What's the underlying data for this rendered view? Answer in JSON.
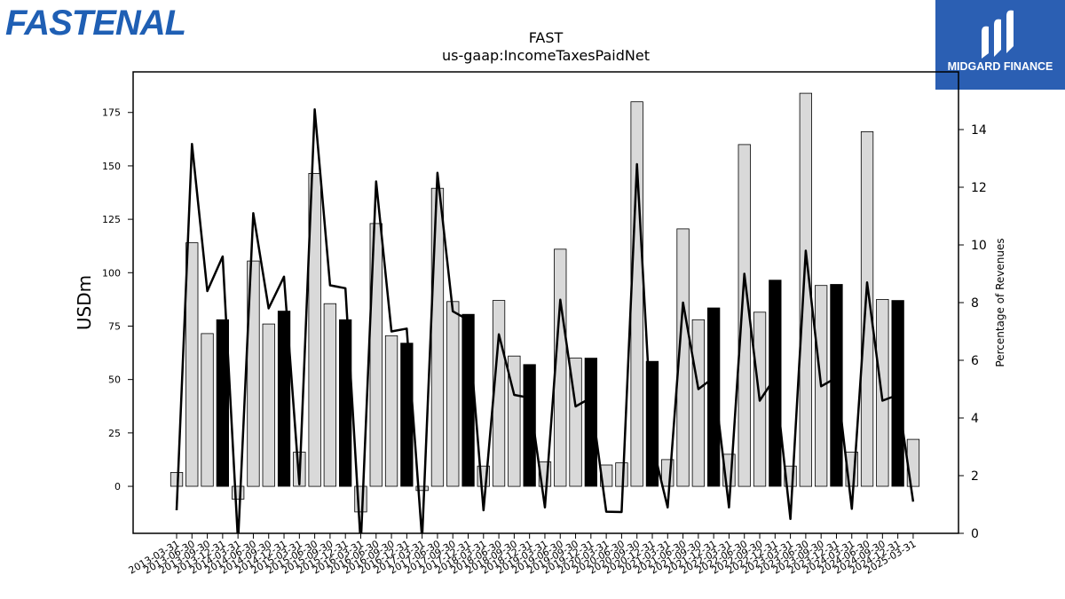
{
  "logos": {
    "left": "FASTENAL",
    "right": "MIDGARD FINANCE"
  },
  "chart_data": {
    "type": "bar",
    "title": "FAST",
    "subtitle": "us-gaap:IncomeTaxesPaidNet",
    "ylabel": "USDm",
    "y2label": "Percentage of Revenues",
    "ylim": [
      -22,
      194
    ],
    "y2lim": [
      0,
      16
    ],
    "yticks": [
      0,
      25,
      50,
      75,
      100,
      125,
      150,
      175
    ],
    "y2ticks": [
      0,
      2,
      4,
      6,
      8,
      10,
      12,
      14
    ],
    "categories": [
      "2013-03-31",
      "2013-06-30",
      "2013-09-30",
      "2013-12-31",
      "2014-03-31",
      "2014-06-30",
      "2014-09-30",
      "2014-12-31",
      "2015-03-31",
      "2015-06-30",
      "2015-09-30",
      "2015-12-31",
      "2016-03-31",
      "2016-06-30",
      "2016-09-30",
      "2016-12-31",
      "2017-03-31",
      "2017-06-30",
      "2017-09-30",
      "2017-12-31",
      "2018-03-31",
      "2018-06-30",
      "2018-09-30",
      "2018-12-31",
      "2019-03-31",
      "2019-06-30",
      "2019-09-30",
      "2019-12-31",
      "2020-03-31",
      "2020-06-30",
      "2020-09-30",
      "2020-12-31",
      "2021-03-31",
      "2021-06-30",
      "2021-09-30",
      "2021-12-31",
      "2022-03-31",
      "2022-06-30",
      "2022-09-30",
      "2022-12-31",
      "2023-03-31",
      "2023-06-30",
      "2023-09-30",
      "2023-12-31",
      "2024-03-31",
      "2024-06-30",
      "2024-09-30",
      "2024-12-31",
      "2025-03-31"
    ],
    "series": [
      {
        "name": "bars",
        "values": [
          6.5,
          114,
          71.5,
          78,
          -6,
          105.5,
          76,
          82,
          16,
          146.5,
          85.5,
          78,
          -12,
          123,
          70.5,
          67,
          -2,
          139.5,
          86.5,
          80.5,
          9.5,
          87,
          61,
          57,
          11.5,
          111,
          60,
          60,
          10,
          11,
          180,
          58.5,
          12.5,
          120.5,
          78,
          83.5,
          15,
          160,
          81.5,
          96.5,
          9.5,
          184,
          94,
          94.5,
          16,
          166,
          87.5,
          87,
          22
        ],
        "colors": [
          "light",
          "light",
          "light",
          "dark",
          "light",
          "light",
          "light",
          "dark",
          "light",
          "light",
          "light",
          "dark",
          "light",
          "light",
          "light",
          "dark",
          "light",
          "light",
          "light",
          "dark",
          "light",
          "light",
          "light",
          "dark",
          "light",
          "light",
          "light",
          "dark",
          "light",
          "light",
          "light",
          "dark",
          "light",
          "light",
          "light",
          "dark",
          "light",
          "light",
          "light",
          "dark",
          "light",
          "light",
          "light",
          "dark",
          "light",
          "light",
          "light",
          "dark",
          "light"
        ]
      },
      {
        "name": "line",
        "values": [
          0.8,
          13.5,
          8.4,
          9.6,
          -0.3,
          11.1,
          7.8,
          8.9,
          1.7,
          14.7,
          8.6,
          8.5,
          -0.4,
          12.2,
          7,
          7.1,
          -0.2,
          12.5,
          7.7,
          7.4,
          0.8,
          6.9,
          4.8,
          4.7,
          0.9,
          8.1,
          4.4,
          4.7,
          0.75,
          0.74,
          12.8,
          3.1,
          0.9,
          8,
          5,
          5.4,
          0.9,
          9,
          4.6,
          5.4,
          0.5,
          9.8,
          5.1,
          5.4,
          0.85,
          8.7,
          4.6,
          4.8,
          1.1
        ]
      }
    ],
    "colors": {
      "light": "#d9d9d9",
      "dark": "#000000",
      "line": "#000000",
      "logo_blue": "#1f5fb4",
      "logo_bg": "#2b5fb3"
    }
  }
}
